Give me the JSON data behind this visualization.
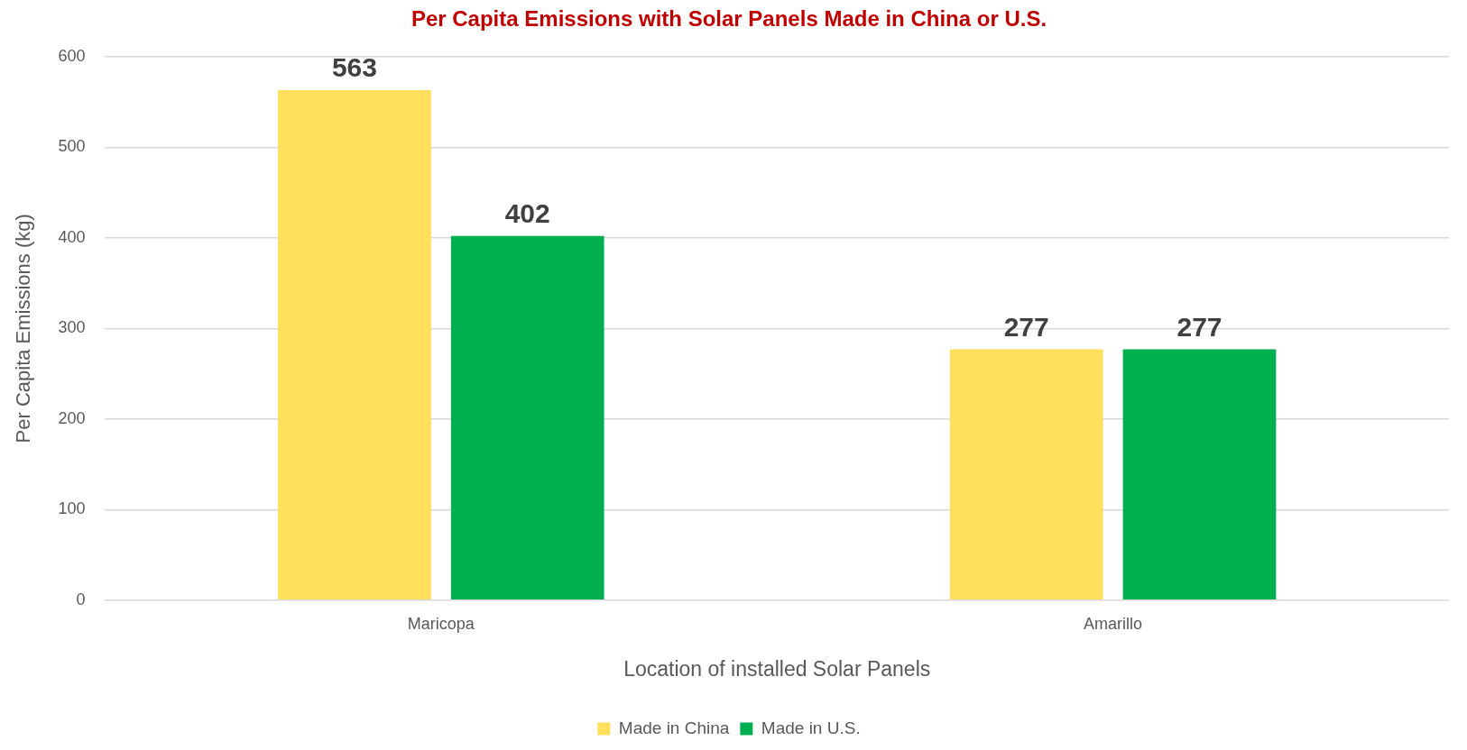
{
  "chart_data": {
    "type": "bar",
    "title": "Per Capita Emissions with Solar Panels Made in China or U.S.",
    "xlabel": "Location of installed Solar Panels",
    "ylabel": "Per Capita Emissions (kg)",
    "categories": [
      "Maricopa",
      "Amarillo"
    ],
    "series": [
      {
        "name": "Made in China",
        "color": "#ffdf5c",
        "values": [
          563,
          277
        ]
      },
      {
        "name": "Made in U.S.",
        "color": "#00b050",
        "values": [
          402,
          277
        ]
      }
    ],
    "ylim": [
      0,
      600
    ],
    "yticks": [
      0,
      100,
      200,
      300,
      400,
      500,
      600
    ],
    "grid": "y",
    "legend": "bottom",
    "data_labels": true
  }
}
